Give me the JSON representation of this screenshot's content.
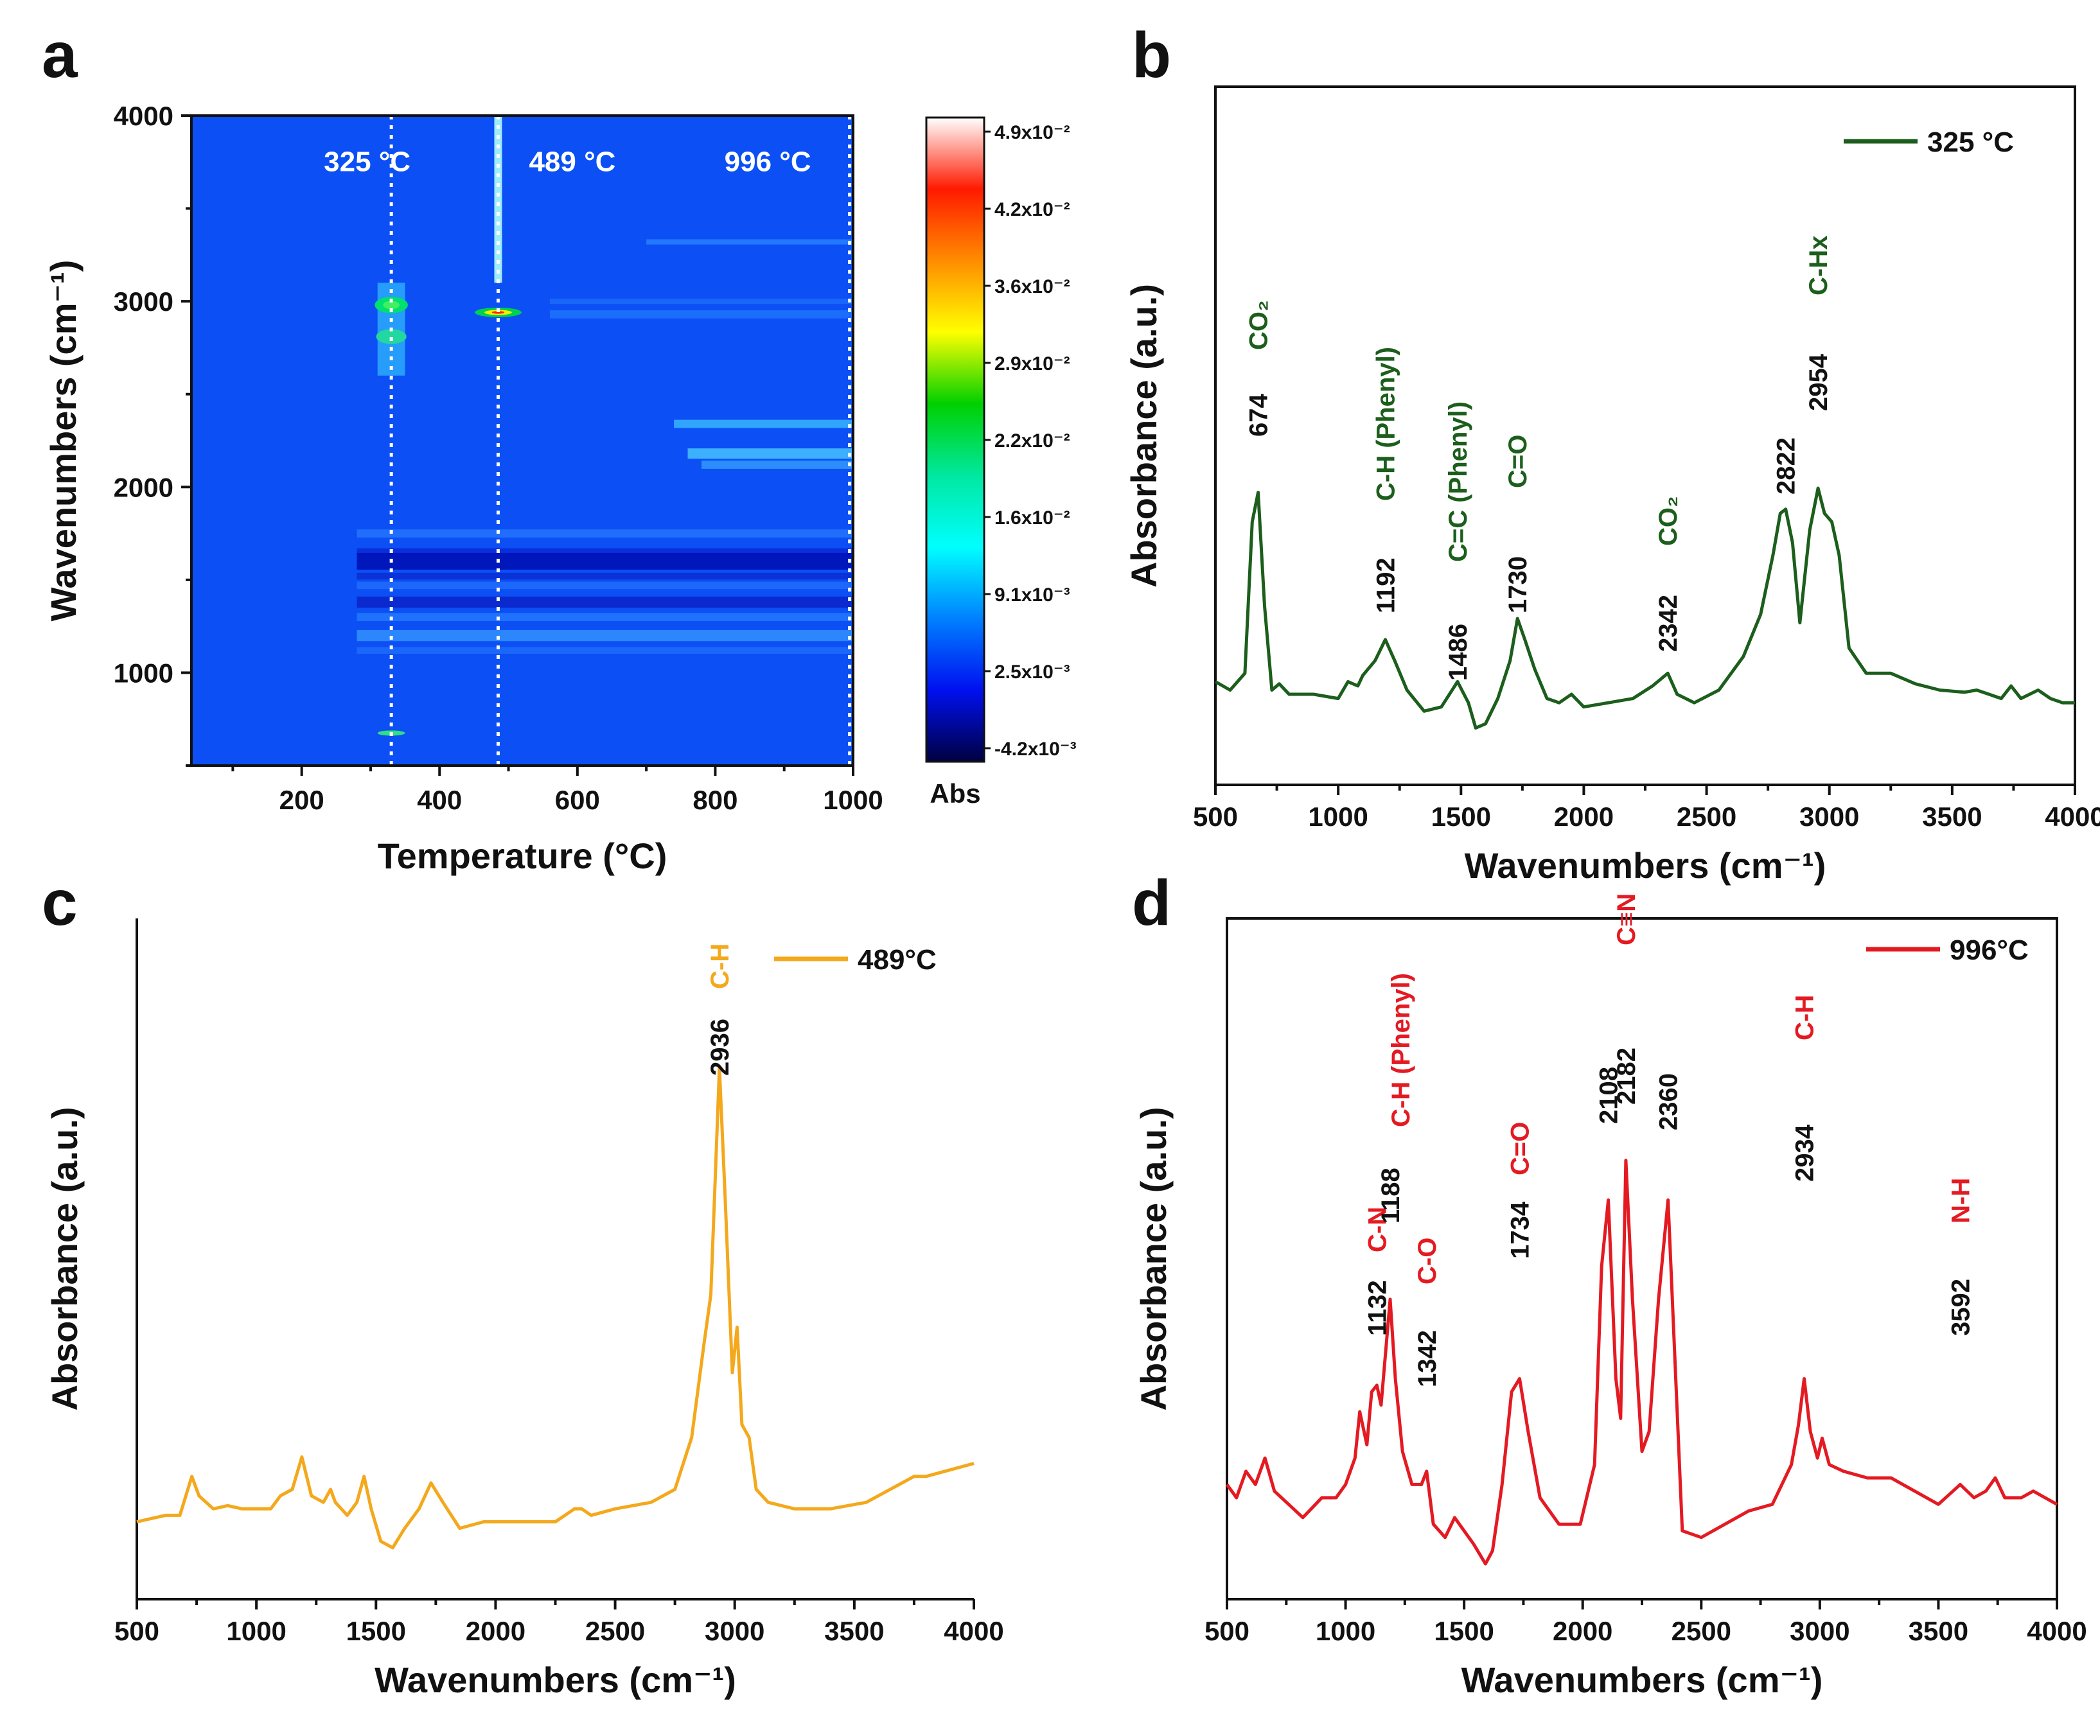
{
  "chart_data": [
    {
      "panel": "a",
      "type": "heatmap",
      "xlabel": "Temperature (°C)",
      "ylabel": "Wavenumbers (cm⁻¹)",
      "xticks": [
        "200",
        "400",
        "600",
        "800",
        "1000"
      ],
      "yticks": [
        "1000",
        "2000",
        "3000",
        "4000"
      ],
      "xlim": [
        40,
        1000
      ],
      "ylim": [
        500,
        4000
      ],
      "markers": [
        {
          "label": "325 °C",
          "x": 330
        },
        {
          "label": "489 °C",
          "x": 485
        },
        {
          "label": "996 °C",
          "x": 995
        }
      ],
      "colorbar": {
        "label": "Abs",
        "ticks": [
          "4.9x10⁻²",
          "4.2x10⁻²",
          "3.6x10⁻²",
          "2.9x10⁻²",
          "2.2x10⁻²",
          "1.6x10⁻²",
          "9.1x10⁻³",
          "2.5x10⁻³",
          "-4.2x10⁻³"
        ],
        "colors": [
          "#ffffff",
          "#ff1a00",
          "#ff8c00",
          "#ffff00",
          "#00d000",
          "#00e8a0",
          "#00ffff",
          "#0080ff",
          "#0010f0",
          "#000040"
        ]
      }
    },
    {
      "panel": "b",
      "type": "line",
      "legend": "325 °C",
      "color": "#1c5e1c",
      "xlabel": "Wavenumbers (cm⁻¹)",
      "ylabel": "Absorbance (a.u.)",
      "xlim": [
        500,
        4000
      ],
      "ylim": [
        0,
        1
      ],
      "xticks": [
        "500",
        "1000",
        "1500",
        "2000",
        "2500",
        "3000",
        "3500",
        "4000"
      ],
      "x": [
        500,
        560,
        620,
        650,
        674,
        700,
        730,
        760,
        800,
        900,
        1000,
        1040,
        1080,
        1100,
        1150,
        1192,
        1230,
        1280,
        1350,
        1420,
        1486,
        1530,
        1560,
        1600,
        1650,
        1700,
        1730,
        1760,
        1800,
        1850,
        1900,
        1950,
        2000,
        2100,
        2200,
        2280,
        2342,
        2380,
        2450,
        2550,
        2650,
        2720,
        2770,
        2800,
        2822,
        2850,
        2880,
        2920,
        2954,
        2980,
        3010,
        3040,
        3080,
        3150,
        3250,
        3350,
        3450,
        3550,
        3600,
        3650,
        3700,
        3740,
        3780,
        3850,
        3900,
        3950,
        4000
      ],
      "y": [
        0.12,
        0.1,
        0.14,
        0.5,
        0.57,
        0.3,
        0.1,
        0.115,
        0.09,
        0.09,
        0.08,
        0.12,
        0.11,
        0.135,
        0.17,
        0.22,
        0.17,
        0.1,
        0.05,
        0.06,
        0.12,
        0.07,
        0.01,
        0.02,
        0.08,
        0.17,
        0.27,
        0.22,
        0.15,
        0.08,
        0.07,
        0.09,
        0.06,
        0.07,
        0.08,
        0.11,
        0.14,
        0.09,
        0.07,
        0.1,
        0.18,
        0.28,
        0.42,
        0.52,
        0.53,
        0.45,
        0.26,
        0.48,
        0.58,
        0.52,
        0.5,
        0.42,
        0.2,
        0.14,
        0.14,
        0.115,
        0.1,
        0.095,
        0.1,
        0.09,
        0.08,
        0.11,
        0.08,
        0.1,
        0.08,
        0.07,
        0.07
      ],
      "annotations": [
        {
          "number": "674",
          "label": "CO₂",
          "x": 674
        },
        {
          "number": "1192",
          "label": "C-H (Phenyl)",
          "x": 1192
        },
        {
          "number": "1486",
          "label": "C=C (Phenyl)",
          "x": 1486
        },
        {
          "number": "1730",
          "label": "C=O",
          "x": 1730
        },
        {
          "number": "2342",
          "label": "CO₂",
          "x": 2342
        },
        {
          "number": "2822",
          "label": "",
          "x": 2822
        },
        {
          "number": "2954",
          "label": "C-Hx",
          "x": 2954
        }
      ]
    },
    {
      "panel": "c",
      "type": "line",
      "legend": "489°C",
      "color": "#f4a81c",
      "xlabel": "Wavenumbers (cm⁻¹)",
      "ylabel": "Absorbance (a.u.)",
      "xlim": [
        500,
        4000
      ],
      "ylim": [
        0,
        1
      ],
      "xticks": [
        "500",
        "1000",
        "1500",
        "2000",
        "2500",
        "3000",
        "3500",
        "4000"
      ],
      "x": [
        500,
        560,
        620,
        680,
        730,
        760,
        820,
        880,
        940,
        1000,
        1060,
        1100,
        1150,
        1190,
        1230,
        1280,
        1310,
        1330,
        1380,
        1420,
        1450,
        1480,
        1520,
        1570,
        1620,
        1680,
        1730,
        1780,
        1850,
        1950,
        2050,
        2150,
        2250,
        2330,
        2360,
        2400,
        2500,
        2650,
        2750,
        2820,
        2870,
        2900,
        2936,
        2960,
        2990,
        3010,
        3030,
        3060,
        3090,
        3140,
        3250,
        3400,
        3550,
        3700,
        3750,
        3800,
        3900,
        4000
      ],
      "y": [
        0.05,
        0.055,
        0.06,
        0.06,
        0.12,
        0.09,
        0.07,
        0.075,
        0.07,
        0.07,
        0.07,
        0.09,
        0.1,
        0.15,
        0.09,
        0.08,
        0.1,
        0.08,
        0.06,
        0.08,
        0.12,
        0.07,
        0.02,
        0.01,
        0.04,
        0.07,
        0.11,
        0.08,
        0.04,
        0.05,
        0.05,
        0.05,
        0.05,
        0.07,
        0.07,
        0.06,
        0.07,
        0.08,
        0.1,
        0.18,
        0.32,
        0.4,
        0.75,
        0.55,
        0.28,
        0.35,
        0.2,
        0.18,
        0.1,
        0.08,
        0.07,
        0.07,
        0.08,
        0.11,
        0.12,
        0.12,
        0.13,
        0.14
      ],
      "annotations": [
        {
          "number": "2936",
          "label": "C-H",
          "x": 2936
        }
      ]
    },
    {
      "panel": "d",
      "type": "line",
      "legend": "996°C",
      "color": "#e41a22",
      "xlabel": "Wavenumbers (cm⁻¹)",
      "ylabel": "Absorbance (a.u.)",
      "xlim": [
        500,
        4000
      ],
      "ylim": [
        0,
        1
      ],
      "xticks": [
        "500",
        "1000",
        "1500",
        "2000",
        "2500",
        "3000",
        "3500",
        "4000"
      ],
      "x": [
        500,
        540,
        580,
        620,
        660,
        700,
        760,
        820,
        900,
        960,
        1000,
        1040,
        1060,
        1090,
        1110,
        1132,
        1150,
        1188,
        1210,
        1240,
        1280,
        1320,
        1342,
        1370,
        1420,
        1460,
        1500,
        1540,
        1590,
        1620,
        1660,
        1700,
        1734,
        1770,
        1820,
        1900,
        1990,
        2050,
        2080,
        2108,
        2140,
        2160,
        2182,
        2210,
        2250,
        2280,
        2320,
        2360,
        2390,
        2420,
        2500,
        2600,
        2700,
        2800,
        2880,
        2910,
        2934,
        2960,
        2990,
        3010,
        3040,
        3100,
        3200,
        3300,
        3400,
        3500,
        3592,
        3650,
        3700,
        3740,
        3780,
        3850,
        3900,
        4000
      ],
      "y": [
        0.12,
        0.1,
        0.14,
        0.12,
        0.16,
        0.11,
        0.09,
        0.07,
        0.1,
        0.1,
        0.12,
        0.16,
        0.23,
        0.18,
        0.26,
        0.27,
        0.24,
        0.4,
        0.28,
        0.17,
        0.12,
        0.12,
        0.14,
        0.06,
        0.04,
        0.07,
        0.05,
        0.03,
        0.0,
        0.02,
        0.12,
        0.26,
        0.28,
        0.2,
        0.1,
        0.06,
        0.06,
        0.15,
        0.45,
        0.55,
        0.28,
        0.22,
        0.61,
        0.4,
        0.17,
        0.2,
        0.4,
        0.55,
        0.3,
        0.05,
        0.04,
        0.06,
        0.08,
        0.09,
        0.15,
        0.21,
        0.28,
        0.2,
        0.16,
        0.19,
        0.15,
        0.14,
        0.13,
        0.13,
        0.11,
        0.09,
        0.12,
        0.1,
        0.11,
        0.13,
        0.1,
        0.1,
        0.11,
        0.09
      ],
      "annotations": [
        {
          "number": "1132",
          "label": "C-N",
          "x": 1132
        },
        {
          "number": "1188",
          "label": "C-H (Phenyl)",
          "x": 1188
        },
        {
          "number": "1342",
          "label": "C-O",
          "x": 1342
        },
        {
          "number": "1734",
          "label": "C=O",
          "x": 1734
        },
        {
          "number": "2108",
          "label": "",
          "x": 2108
        },
        {
          "number": "2182",
          "label": "C≡N",
          "x": 2182
        },
        {
          "number": "2360",
          "label": "",
          "x": 2360
        },
        {
          "number": "2934",
          "label": "C-H",
          "x": 2934
        },
        {
          "number": "3592",
          "label": "N-H",
          "x": 3592
        }
      ]
    }
  ]
}
